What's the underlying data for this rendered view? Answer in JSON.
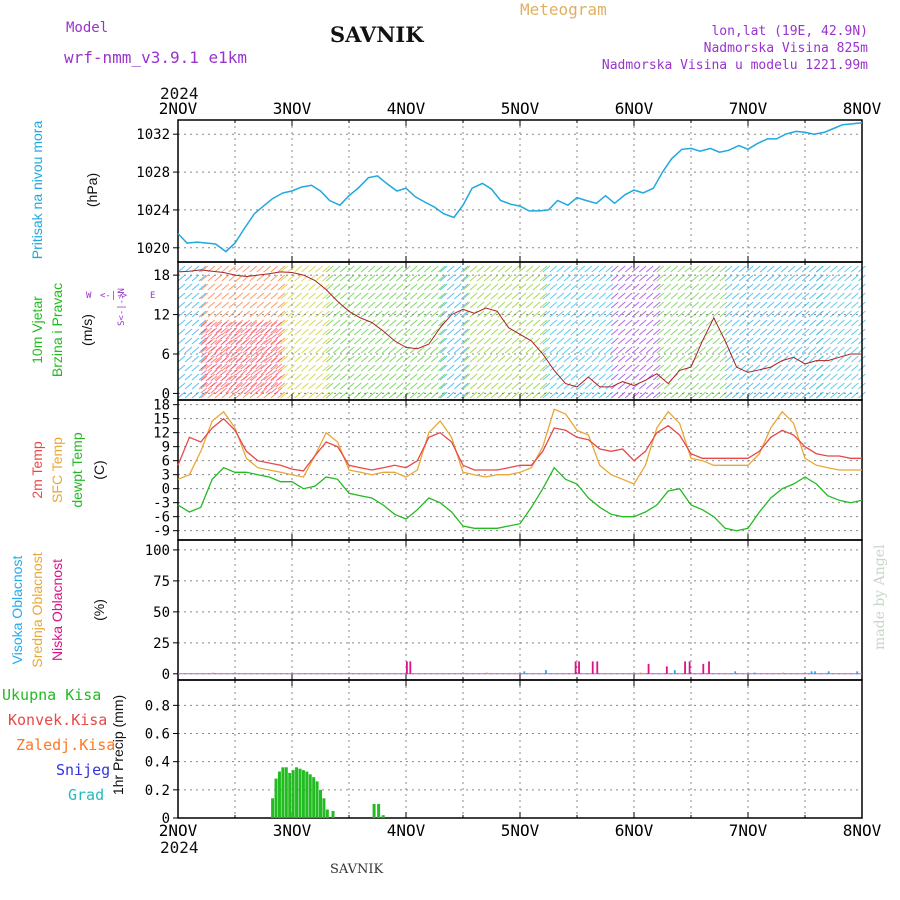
{
  "header": {
    "model_label": "Model",
    "model_name": "wrf-nmm_v3.9.1 e1km",
    "station": "SAVNIK",
    "meteogram": "Meteogram",
    "lonlat": "lon,lat (19E, 42.9N)",
    "elevation": "Nadmorska Visina 825m",
    "model_elevation": "Nadmorska Visina u modelu 1221.99m",
    "year_top": "2024",
    "year_bottom": "2024",
    "footer": "SAVNIK",
    "credit": "made by Angel"
  },
  "colors": {
    "pressure": "#1fa8e0",
    "temp2m": "#e84848",
    "sfc_temp": "#e8a838",
    "dewpoint": "#22bb22",
    "cloud_high": "#22aaee",
    "cloud_mid": "#e8a838",
    "cloud_low": "#dd1188",
    "precip": "#22bb22",
    "grid": "#888888",
    "wind_axis_label": "#9933cc"
  },
  "panel_labels": {
    "pressure": [
      "Pritisak na nivou mora",
      "(hPa)"
    ],
    "wind": [
      "10m Vjetar",
      "Brzina i Pravac",
      "(m/s)"
    ],
    "wind_compass": [
      "W",
      "<-|->",
      "E",
      "S<-|->N"
    ],
    "temp": [
      "2m Temp",
      "SFC Temp",
      "dewpt Temp",
      "(C)"
    ],
    "cloud": [
      "Visoka Oblacnost",
      "Srednja Oblacnost",
      "Niska Oblacnost",
      "(%)"
    ],
    "precip": [
      "Ukupna Kisa",
      "Konvek.Kisa",
      "Zaledj.Kisa",
      "Snijeg",
      "Grad",
      "1hr Precip (mm)"
    ]
  },
  "chart_data": [
    {
      "type": "line",
      "title": "Pritisak na nivou mora",
      "ylabel": "(hPa)",
      "x_ticks": [
        "2NOV",
        "3NOV",
        "4NOV",
        "5NOV",
        "6NOV",
        "7NOV",
        "8NOV"
      ],
      "xlim": [
        0,
        6
      ],
      "ylim": [
        1018.5,
        1033.5
      ],
      "y_ticks": [
        1020,
        1024,
        1028,
        1032
      ],
      "grid": true,
      "series": [
        {
          "name": "Pritisak na nivou mora",
          "x": [
            0,
            0.08,
            0.17,
            0.33,
            0.42,
            0.5,
            0.58,
            0.67,
            0.75,
            0.83,
            0.92,
            1.0,
            1.08,
            1.17,
            1.25,
            1.33,
            1.42,
            1.5,
            1.58,
            1.67,
            1.75,
            1.83,
            1.92,
            2.0,
            2.08,
            2.17,
            2.25,
            2.33,
            2.42,
            2.5,
            2.58,
            2.67,
            2.75,
            2.83,
            2.92,
            3.0,
            3.08,
            3.17,
            3.25,
            3.33,
            3.42,
            3.5,
            3.58,
            3.67,
            3.75,
            3.83,
            3.92,
            4.0,
            4.08,
            4.17,
            4.25,
            4.33,
            4.42,
            4.5,
            4.58,
            4.67,
            4.75,
            4.83,
            4.92,
            5.0,
            5.08,
            5.17,
            5.25,
            5.33,
            5.42,
            5.5,
            5.58,
            5.67,
            5.75,
            5.83,
            5.92,
            6.0
          ],
          "values": [
            1021.5,
            1020.5,
            1020.6,
            1020.4,
            1019.6,
            1020.5,
            1022.0,
            1023.6,
            1024.4,
            1025.2,
            1025.8,
            1026.0,
            1026.4,
            1026.6,
            1026.0,
            1025.0,
            1024.5,
            1025.5,
            1026.3,
            1027.4,
            1027.6,
            1026.8,
            1026.0,
            1026.3,
            1025.4,
            1024.8,
            1024.3,
            1023.6,
            1023.2,
            1024.5,
            1026.3,
            1026.8,
            1026.2,
            1025.0,
            1024.6,
            1024.4,
            1023.9,
            1023.9,
            1024.0,
            1025.0,
            1024.5,
            1025.3,
            1025.0,
            1024.7,
            1025.5,
            1024.7,
            1025.6,
            1026.1,
            1025.8,
            1026.3,
            1028.0,
            1029.4,
            1030.4,
            1030.5,
            1030.2,
            1030.5,
            1030.1,
            1030.3,
            1030.8,
            1030.4,
            1031.0,
            1031.5,
            1031.5,
            1032.0,
            1032.3,
            1032.2,
            1032.0,
            1032.2,
            1032.6,
            1033.0,
            1033.1,
            1033.2
          ]
        }
      ]
    },
    {
      "type": "line",
      "title": "10m Vjetar Brzina i Pravac",
      "ylabel": "(m/s)",
      "x_ticks": [
        "2NOV",
        "3NOV",
        "4NOV",
        "5NOV",
        "6NOV",
        "7NOV",
        "8NOV"
      ],
      "xlim": [
        0,
        6
      ],
      "ylim": [
        -1,
        20
      ],
      "y_ticks": [
        0,
        6,
        12,
        18
      ],
      "grid": true,
      "series": [
        {
          "name": "Brzina",
          "x": [
            0,
            0.1,
            0.2,
            0.3,
            0.4,
            0.5,
            0.6,
            0.7,
            0.8,
            0.9,
            1.0,
            1.1,
            1.2,
            1.3,
            1.4,
            1.5,
            1.6,
            1.7,
            1.8,
            1.9,
            2.0,
            2.1,
            2.2,
            2.3,
            2.4,
            2.5,
            2.6,
            2.7,
            2.8,
            2.9,
            3.0,
            3.1,
            3.2,
            3.3,
            3.4,
            3.5,
            3.6,
            3.7,
            3.8,
            3.9,
            4.0,
            4.1,
            4.2,
            4.3,
            4.4,
            4.5,
            4.6,
            4.7,
            4.8,
            4.9,
            5.0,
            5.1,
            5.2,
            5.3,
            5.4,
            5.5,
            5.6,
            5.7,
            5.8,
            5.9,
            6.0
          ],
          "values": [
            18.5,
            18.6,
            18.8,
            18.6,
            18.4,
            18.0,
            17.8,
            18.0,
            18.2,
            18.5,
            18.4,
            18.0,
            17.2,
            15.8,
            14.0,
            12.5,
            11.5,
            10.8,
            9.5,
            8.0,
            7.0,
            6.8,
            7.5,
            10.0,
            12.0,
            12.8,
            12.2,
            13.0,
            12.5,
            10.0,
            9.0,
            8.0,
            6.0,
            3.5,
            1.5,
            1.0,
            2.5,
            1.0,
            1.0,
            1.8,
            1.2,
            2.0,
            3.0,
            1.5,
            3.5,
            4.0,
            8.0,
            11.5,
            8.0,
            4.0,
            3.2,
            3.6,
            4.0,
            5.0,
            5.5,
            4.5,
            5.0,
            5.0,
            5.5,
            6.0,
            6.0
          ]
        }
      ]
    },
    {
      "type": "line",
      "title": "2m Temp / SFC Temp / dewpt Temp",
      "ylabel": "(C)",
      "x_ticks": [
        "2NOV",
        "3NOV",
        "4NOV",
        "5NOV",
        "6NOV",
        "7NOV",
        "8NOV"
      ],
      "xlim": [
        0,
        6
      ],
      "ylim": [
        -11,
        19
      ],
      "y_ticks": [
        -9,
        -6,
        -3,
        0,
        3,
        6,
        9,
        12,
        15,
        18
      ],
      "grid": true,
      "series": [
        {
          "name": "2m Temp",
          "x": [
            0,
            0.1,
            0.2,
            0.3,
            0.4,
            0.5,
            0.6,
            0.7,
            0.8,
            0.9,
            1.0,
            1.1,
            1.2,
            1.3,
            1.4,
            1.5,
            1.6,
            1.7,
            1.8,
            1.9,
            2.0,
            2.1,
            2.2,
            2.3,
            2.4,
            2.5,
            2.6,
            2.7,
            2.8,
            2.9,
            3.0,
            3.1,
            3.2,
            3.3,
            3.4,
            3.5,
            3.6,
            3.7,
            3.8,
            3.9,
            4.0,
            4.1,
            4.2,
            4.3,
            4.4,
            4.5,
            4.6,
            4.7,
            4.8,
            4.9,
            5.0,
            5.1,
            5.2,
            5.3,
            5.4,
            5.5,
            5.6,
            5.7,
            5.8,
            5.9,
            6.0
          ],
          "values": [
            5.0,
            11.0,
            10.0,
            13.0,
            15.0,
            12.5,
            8.0,
            6.0,
            5.5,
            5.0,
            4.2,
            3.8,
            7.0,
            10.0,
            9.0,
            5.0,
            4.5,
            4.0,
            4.5,
            5.0,
            4.5,
            6.0,
            11.0,
            12.0,
            10.0,
            5.0,
            4.0,
            4.0,
            4.0,
            4.5,
            5.0,
            5.0,
            8.0,
            13.0,
            12.5,
            11.0,
            10.5,
            8.5,
            8.0,
            8.5,
            6.0,
            8.0,
            12.0,
            13.5,
            11.5,
            7.5,
            6.5,
            6.5,
            6.5,
            6.5,
            6.5,
            8.0,
            11.0,
            12.5,
            11.5,
            9.0,
            7.5,
            7.0,
            7.0,
            6.5,
            6.5
          ]
        },
        {
          "name": "SFC Temp",
          "x": [
            0,
            0.1,
            0.2,
            0.3,
            0.4,
            0.5,
            0.6,
            0.7,
            0.8,
            0.9,
            1.0,
            1.1,
            1.2,
            1.3,
            1.4,
            1.5,
            1.6,
            1.7,
            1.8,
            1.9,
            2.0,
            2.1,
            2.2,
            2.3,
            2.4,
            2.5,
            2.6,
            2.7,
            2.8,
            2.9,
            3.0,
            3.1,
            3.2,
            3.3,
            3.4,
            3.5,
            3.6,
            3.7,
            3.8,
            3.9,
            4.0,
            4.1,
            4.2,
            4.3,
            4.4,
            4.5,
            4.6,
            4.7,
            4.8,
            4.9,
            5.0,
            5.1,
            5.2,
            5.3,
            5.4,
            5.5,
            5.6,
            5.7,
            5.8,
            5.9,
            6.0
          ],
          "values": [
            2.0,
            3.0,
            8.0,
            14.5,
            16.5,
            13.0,
            6.5,
            4.5,
            4.0,
            3.5,
            3.0,
            2.5,
            7.0,
            12.0,
            10.0,
            4.0,
            3.5,
            3.0,
            3.5,
            3.5,
            2.5,
            4.0,
            12.0,
            14.5,
            11.0,
            3.5,
            3.0,
            2.5,
            3.0,
            3.0,
            3.5,
            4.5,
            9.0,
            17.0,
            16.0,
            12.5,
            11.5,
            5.0,
            3.0,
            2.0,
            1.0,
            5.0,
            13.0,
            16.5,
            14.0,
            6.5,
            6.0,
            5.0,
            5.0,
            5.0,
            5.0,
            7.5,
            13.0,
            16.5,
            14.0,
            6.5,
            5.0,
            4.5,
            4.0,
            4.0,
            4.0
          ]
        },
        {
          "name": "dewpt Temp",
          "x": [
            0,
            0.1,
            0.2,
            0.3,
            0.4,
            0.5,
            0.6,
            0.7,
            0.8,
            0.9,
            1.0,
            1.1,
            1.2,
            1.3,
            1.4,
            1.5,
            1.6,
            1.7,
            1.8,
            1.9,
            2.0,
            2.1,
            2.2,
            2.3,
            2.4,
            2.5,
            2.6,
            2.7,
            2.8,
            2.9,
            3.0,
            3.1,
            3.2,
            3.3,
            3.4,
            3.5,
            3.6,
            3.7,
            3.8,
            3.9,
            4.0,
            4.1,
            4.2,
            4.3,
            4.4,
            4.5,
            4.6,
            4.7,
            4.8,
            4.9,
            5.0,
            5.1,
            5.2,
            5.3,
            5.4,
            5.5,
            5.6,
            5.7,
            5.8,
            5.9,
            6.0
          ],
          "values": [
            -3.5,
            -5.0,
            -4.0,
            2.0,
            4.5,
            3.5,
            3.5,
            3.0,
            2.5,
            1.5,
            1.5,
            0.0,
            0.5,
            2.5,
            2.0,
            -1.0,
            -1.5,
            -2.0,
            -3.5,
            -5.5,
            -6.5,
            -4.5,
            -2.0,
            -3.0,
            -5.0,
            -8.0,
            -8.5,
            -8.5,
            -8.5,
            -8.0,
            -7.5,
            -4.0,
            0.0,
            4.5,
            2.0,
            1.0,
            -2.0,
            -4.0,
            -5.5,
            -6.0,
            -6.0,
            -5.0,
            -3.5,
            -0.5,
            0.0,
            -3.5,
            -4.5,
            -6.0,
            -8.5,
            -9.0,
            -8.5,
            -5.0,
            -2.0,
            0.0,
            1.0,
            2.5,
            1.0,
            -1.5,
            -2.5,
            -3.0,
            -2.5
          ]
        }
      ]
    },
    {
      "type": "bar",
      "title": "Visoka / Srednja / Niska Oblacnost",
      "ylabel": "(%)",
      "x_ticks": [
        "2NOV",
        "3NOV",
        "4NOV",
        "5NOV",
        "6NOV",
        "7NOV",
        "8NOV"
      ],
      "xlim": [
        0,
        6
      ],
      "ylim": [
        -5,
        108
      ],
      "y_ticks": [
        0,
        25,
        50,
        75,
        100
      ],
      "grid": true,
      "series": [
        {
          "name": "Niska Oblacnost",
          "x": [
            2.0,
            2.03,
            3.48,
            3.51,
            3.63,
            3.67,
            4.12,
            4.28,
            4.44,
            4.48,
            4.6,
            4.65
          ],
          "values": [
            10,
            10,
            10,
            10,
            10,
            10,
            8,
            6,
            10,
            10,
            8,
            10
          ]
        },
        {
          "name": "Visoka Oblacnost",
          "x": [
            3.03,
            3.22,
            4.35,
            4.88,
            5.05,
            5.55,
            5.58,
            5.7,
            5.95
          ],
          "values": [
            2,
            3,
            3,
            2,
            1,
            2,
            2,
            2,
            2
          ]
        },
        {
          "name": "Srednja Oblacnost",
          "x": [
            0.3,
            2.7,
            4.05,
            5.3
          ],
          "values": [
            1,
            1,
            1,
            1
          ]
        }
      ]
    },
    {
      "type": "bar",
      "title": "1hr Precip",
      "ylabel": "1hr Precip (mm)",
      "x_ticks": [
        "2NOV",
        "3NOV",
        "4NOV",
        "5NOV",
        "6NOV",
        "7NOV",
        "8NOV"
      ],
      "xlim": [
        0,
        6
      ],
      "ylim": [
        0,
        0.98
      ],
      "y_ticks": [
        0,
        0.2,
        0.4,
        0.6,
        0.8
      ],
      "grid": true,
      "series": [
        {
          "name": "Ukupna Kisa",
          "x": [
            0.83,
            0.86,
            0.89,
            0.92,
            0.95,
            0.98,
            1.01,
            1.04,
            1.07,
            1.1,
            1.13,
            1.16,
            1.19,
            1.22,
            1.25,
            1.28,
            1.31,
            1.36,
            1.72,
            1.76,
            1.8
          ],
          "values": [
            0.14,
            0.28,
            0.33,
            0.36,
            0.36,
            0.32,
            0.34,
            0.36,
            0.35,
            0.34,
            0.33,
            0.31,
            0.29,
            0.26,
            0.2,
            0.14,
            0.06,
            0.05,
            0.1,
            0.1,
            0.02
          ]
        }
      ]
    }
  ]
}
